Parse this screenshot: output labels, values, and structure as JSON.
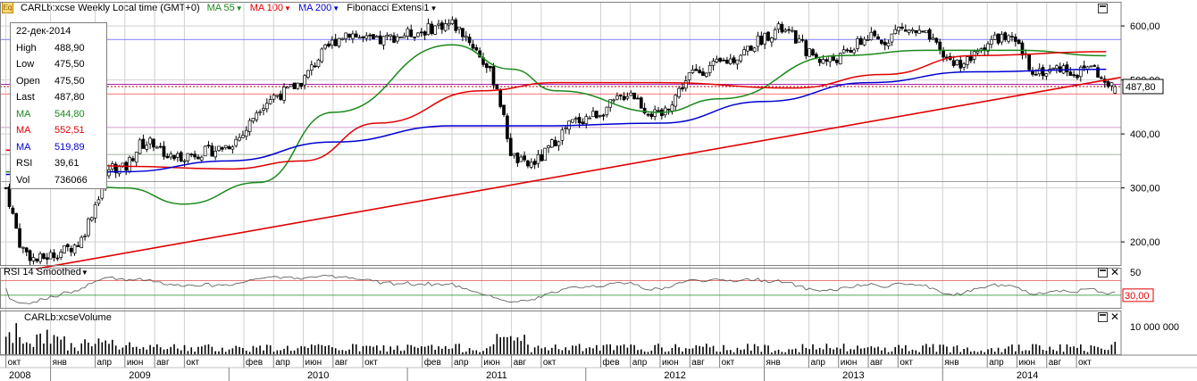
{
  "header": {
    "symbol_title": "CARLb:xcse Weekly Local time (GMT+0)",
    "ma55_label": "MA 55",
    "ma100_label": "MA 100",
    "ma200_label": "MA 200",
    "fib_label": "Fibonacci Extensi",
    "fib_suffix": "1"
  },
  "colors": {
    "up_candle": "#ffffff",
    "down_candle": "#000000",
    "ma55": "#1a8a1a",
    "ma100": "#e00000",
    "ma200": "#0000d0",
    "trendline": "#e00000",
    "grid": "#d0d0d0"
  },
  "data_window": {
    "date": "22-дек-2014",
    "rows": [
      {
        "label": "High",
        "value": "488,90",
        "color": "#000000"
      },
      {
        "label": "Low",
        "value": "475,50",
        "color": "#000000"
      },
      {
        "label": "Open",
        "value": "475,50",
        "color": "#000000"
      },
      {
        "label": "Last",
        "value": "487,80",
        "color": "#000000"
      },
      {
        "label": "MA",
        "value": "544,80",
        "color": "#1a8a1a"
      },
      {
        "label": "MA",
        "value": "552,51",
        "color": "#e00000"
      },
      {
        "label": "MA",
        "value": "519,89",
        "color": "#0000d0"
      },
      {
        "label": "RSI",
        "value": "39,61",
        "color": "#000000"
      },
      {
        "label": "Vol",
        "value": "736066",
        "color": "#000000"
      }
    ]
  },
  "price_pane": {
    "last_price_label": "487,80",
    "y_ticks": [
      "600,00",
      "500,00",
      "400,00",
      "300,00",
      "200,00"
    ],
    "fib_levels": [
      575,
      492,
      474,
      412,
      362,
      312
    ]
  },
  "rsi_pane": {
    "title": "RSI 14 Smoothed",
    "tick_top": "50",
    "current_label": "30,00",
    "levels": [
      70,
      30
    ]
  },
  "volume_pane": {
    "title": "CARLb:xcseVolume",
    "tick": "10 000 000"
  },
  "x_axis": {
    "months": [
      "окт",
      "янв",
      "апр",
      "июн",
      "авг",
      "окт",
      "фев",
      "апр",
      "июн",
      "авг",
      "окт",
      "фев",
      "апр",
      "июн",
      "авг",
      "окт",
      "фев",
      "апр",
      "июн",
      "авг",
      "окт",
      "янв",
      "апр",
      "июн",
      "авг",
      "окт",
      "янв",
      "апр",
      "июн",
      "авг",
      "окт"
    ],
    "years": [
      "2008",
      "2009",
      "2010",
      "2011",
      "2012",
      "2013",
      "2014"
    ]
  },
  "chart_data": {
    "type": "candlestick",
    "title": "CARLb:xcse Weekly Local time (GMT+0)",
    "frequency": "weekly",
    "x_range": [
      "2008-10",
      "2014-12"
    ],
    "ylim": [
      130,
      620
    ],
    "y_ticks": [
      200,
      300,
      400,
      500,
      600
    ],
    "last_bar": {
      "date": "22-дек-2014",
      "open": 475.5,
      "high": 488.9,
      "low": 475.5,
      "close": 487.8,
      "volume": 736066
    },
    "close_path": [
      {
        "date": "2008-10",
        "close": 300
      },
      {
        "date": "2008-11",
        "close": 190
      },
      {
        "date": "2008-12",
        "close": 165
      },
      {
        "date": "2009-01",
        "close": 175
      },
      {
        "date": "2009-02",
        "close": 185
      },
      {
        "date": "2009-03",
        "close": 200
      },
      {
        "date": "2009-04",
        "close": 270
      },
      {
        "date": "2009-05",
        "close": 340
      },
      {
        "date": "2009-06",
        "close": 335
      },
      {
        "date": "2009-07",
        "close": 380
      },
      {
        "date": "2009-08",
        "close": 385
      },
      {
        "date": "2009-09",
        "close": 355
      },
      {
        "date": "2009-10",
        "close": 360
      },
      {
        "date": "2009-11",
        "close": 365
      },
      {
        "date": "2009-12",
        "close": 370
      },
      {
        "date": "2010-01",
        "close": 380
      },
      {
        "date": "2010-02",
        "close": 400
      },
      {
        "date": "2010-03",
        "close": 450
      },
      {
        "date": "2010-04",
        "close": 470
      },
      {
        "date": "2010-05",
        "close": 480
      },
      {
        "date": "2010-06",
        "close": 500
      },
      {
        "date": "2010-07",
        "close": 540
      },
      {
        "date": "2010-08",
        "close": 570
      },
      {
        "date": "2010-09",
        "close": 590
      },
      {
        "date": "2010-10",
        "close": 575
      },
      {
        "date": "2010-11",
        "close": 570
      },
      {
        "date": "2010-12",
        "close": 580
      },
      {
        "date": "2011-01",
        "close": 585
      },
      {
        "date": "2011-02",
        "close": 590
      },
      {
        "date": "2011-03",
        "close": 600
      },
      {
        "date": "2011-04",
        "close": 605
      },
      {
        "date": "2011-05",
        "close": 580
      },
      {
        "date": "2011-06",
        "close": 540
      },
      {
        "date": "2011-07",
        "close": 490
      },
      {
        "date": "2011-08",
        "close": 360
      },
      {
        "date": "2011-09",
        "close": 340
      },
      {
        "date": "2011-10",
        "close": 355
      },
      {
        "date": "2011-11",
        "close": 390
      },
      {
        "date": "2011-12",
        "close": 420
      },
      {
        "date": "2012-01",
        "close": 430
      },
      {
        "date": "2012-02",
        "close": 440
      },
      {
        "date": "2012-03",
        "close": 460
      },
      {
        "date": "2012-04",
        "close": 480
      },
      {
        "date": "2012-05",
        "close": 445
      },
      {
        "date": "2012-06",
        "close": 430
      },
      {
        "date": "2012-07",
        "close": 470
      },
      {
        "date": "2012-08",
        "close": 510
      },
      {
        "date": "2012-09",
        "close": 520
      },
      {
        "date": "2012-10",
        "close": 530
      },
      {
        "date": "2012-11",
        "close": 540
      },
      {
        "date": "2012-12",
        "close": 560
      },
      {
        "date": "2013-01",
        "close": 580
      },
      {
        "date": "2013-02",
        "close": 595
      },
      {
        "date": "2013-03",
        "close": 580
      },
      {
        "date": "2013-04",
        "close": 550
      },
      {
        "date": "2013-05",
        "close": 535
      },
      {
        "date": "2013-06",
        "close": 540
      },
      {
        "date": "2013-07",
        "close": 560
      },
      {
        "date": "2013-08",
        "close": 580
      },
      {
        "date": "2013-09",
        "close": 570
      },
      {
        "date": "2013-10",
        "close": 595
      },
      {
        "date": "2013-11",
        "close": 590
      },
      {
        "date": "2013-12",
        "close": 580
      },
      {
        "date": "2014-01",
        "close": 545
      },
      {
        "date": "2014-02",
        "close": 530
      },
      {
        "date": "2014-03",
        "close": 540
      },
      {
        "date": "2014-04",
        "close": 570
      },
      {
        "date": "2014-05",
        "close": 580
      },
      {
        "date": "2014-06",
        "close": 565
      },
      {
        "date": "2014-07",
        "close": 520
      },
      {
        "date": "2014-08",
        "close": 515
      },
      {
        "date": "2014-09",
        "close": 525
      },
      {
        "date": "2014-10",
        "close": 510
      },
      {
        "date": "2014-11",
        "close": 530
      },
      {
        "date": "2014-12",
        "close": 487.8
      }
    ],
    "series": [
      {
        "name": "MA 55",
        "last": 544.8,
        "points": [
          {
            "date": "2008-10",
            "v": 330
          },
          {
            "date": "2009-06",
            "v": 300
          },
          {
            "date": "2009-10",
            "v": 270
          },
          {
            "date": "2010-03",
            "v": 310
          },
          {
            "date": "2010-08",
            "v": 440
          },
          {
            "date": "2011-04",
            "v": 565
          },
          {
            "date": "2011-08",
            "v": 520
          },
          {
            "date": "2011-11",
            "v": 480
          },
          {
            "date": "2012-06",
            "v": 440
          },
          {
            "date": "2012-10",
            "v": 465
          },
          {
            "date": "2013-06",
            "v": 545
          },
          {
            "date": "2013-12",
            "v": 555
          },
          {
            "date": "2014-06",
            "v": 555
          },
          {
            "date": "2014-12",
            "v": 544.8
          }
        ]
      },
      {
        "name": "MA 100",
        "last": 552.51,
        "points": [
          {
            "date": "2008-10",
            "v": 370
          },
          {
            "date": "2009-06",
            "v": 340
          },
          {
            "date": "2010-01",
            "v": 335
          },
          {
            "date": "2010-06",
            "v": 350
          },
          {
            "date": "2010-11",
            "v": 420
          },
          {
            "date": "2011-06",
            "v": 480
          },
          {
            "date": "2011-11",
            "v": 495
          },
          {
            "date": "2012-06",
            "v": 495
          },
          {
            "date": "2013-03",
            "v": 485
          },
          {
            "date": "2013-09",
            "v": 510
          },
          {
            "date": "2014-03",
            "v": 545
          },
          {
            "date": "2014-12",
            "v": 552.51
          }
        ]
      },
      {
        "name": "MA 200",
        "last": 519.89,
        "points": [
          {
            "date": "2008-10",
            "v": 325
          },
          {
            "date": "2009-06",
            "v": 330
          },
          {
            "date": "2010-01",
            "v": 350
          },
          {
            "date": "2010-08",
            "v": 385
          },
          {
            "date": "2011-04",
            "v": 415
          },
          {
            "date": "2011-10",
            "v": 415
          },
          {
            "date": "2012-06",
            "v": 420
          },
          {
            "date": "2013-01",
            "v": 460
          },
          {
            "date": "2013-08",
            "v": 495
          },
          {
            "date": "2014-03",
            "v": 515
          },
          {
            "date": "2014-12",
            "v": 519.89
          }
        ]
      }
    ],
    "trendline": [
      {
        "date": "2008-12",
        "v": 150
      },
      {
        "date": "2014-12",
        "v": 500
      }
    ],
    "rsi": {
      "last": 39.61,
      "levels": [
        70,
        30
      ],
      "ylim": [
        0,
        100
      ]
    },
    "volume": {
      "last": 736066,
      "tick": 10000000
    }
  }
}
